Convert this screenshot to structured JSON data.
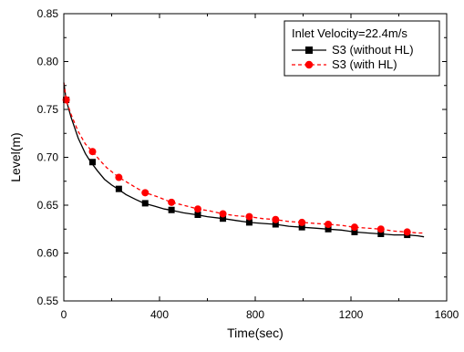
{
  "chart_data": {
    "type": "line",
    "title": "",
    "xlabel": "Time(sec)",
    "ylabel": "Level(m)",
    "xlim": [
      0,
      1600
    ],
    "ylim": [
      0.55,
      0.85
    ],
    "xticks": [
      0,
      400,
      800,
      1200,
      1600
    ],
    "yticks": [
      0.55,
      0.6,
      0.65,
      0.7,
      0.75,
      0.8,
      0.85
    ],
    "grid": false,
    "legend": {
      "placement": "top-right",
      "title": "Inlet Velocity=22.4m/s"
    },
    "series": [
      {
        "name": "S3 (without HL)",
        "color": "#000000",
        "line_style": "solid",
        "marker": "square",
        "x": [
          0,
          10,
          30,
          60,
          90,
          110,
          140,
          170,
          200,
          225,
          260,
          300,
          335,
          380,
          420,
          445,
          500,
          555,
          600,
          665,
          720,
          775,
          830,
          885,
          940,
          995,
          1050,
          1105,
          1160,
          1215,
          1270,
          1325,
          1380,
          1435,
          1480,
          1505
        ],
        "y": [
          0.778,
          0.76,
          0.742,
          0.72,
          0.704,
          0.696,
          0.686,
          0.677,
          0.671,
          0.667,
          0.661,
          0.656,
          0.652,
          0.649,
          0.646,
          0.645,
          0.642,
          0.64,
          0.638,
          0.636,
          0.634,
          0.632,
          0.631,
          0.63,
          0.628,
          0.627,
          0.626,
          0.625,
          0.624,
          0.622,
          0.621,
          0.62,
          0.619,
          0.619,
          0.618,
          0.617
        ],
        "marker_x": [
          10,
          120,
          230,
          340,
          450,
          560,
          665,
          775,
          885,
          995,
          1105,
          1215,
          1325,
          1435
        ],
        "marker_y": [
          0.76,
          0.695,
          0.667,
          0.652,
          0.645,
          0.64,
          0.636,
          0.632,
          0.63,
          0.627,
          0.625,
          0.622,
          0.62,
          0.619
        ]
      },
      {
        "name": "S3 (with HL)",
        "color": "#ff0000",
        "line_style": "dashed",
        "marker": "circle",
        "x": [
          0,
          10,
          30,
          60,
          90,
          120,
          150,
          180,
          210,
          230,
          270,
          310,
          340,
          390,
          430,
          450,
          500,
          560,
          610,
          665,
          720,
          775,
          830,
          885,
          940,
          995,
          1050,
          1105,
          1160,
          1215,
          1270,
          1325,
          1380,
          1435,
          1480,
          1505
        ],
        "y": [
          0.778,
          0.76,
          0.745,
          0.727,
          0.714,
          0.706,
          0.697,
          0.689,
          0.683,
          0.679,
          0.673,
          0.667,
          0.663,
          0.659,
          0.655,
          0.653,
          0.65,
          0.646,
          0.644,
          0.641,
          0.639,
          0.638,
          0.636,
          0.635,
          0.633,
          0.632,
          0.631,
          0.63,
          0.629,
          0.627,
          0.626,
          0.625,
          0.623,
          0.622,
          0.621,
          0.621
        ],
        "marker_x": [
          10,
          120,
          230,
          340,
          450,
          560,
          665,
          775,
          885,
          995,
          1105,
          1215,
          1325,
          1435
        ],
        "marker_y": [
          0.76,
          0.706,
          0.679,
          0.663,
          0.653,
          0.646,
          0.641,
          0.638,
          0.635,
          0.632,
          0.63,
          0.627,
          0.625,
          0.622
        ]
      }
    ]
  }
}
